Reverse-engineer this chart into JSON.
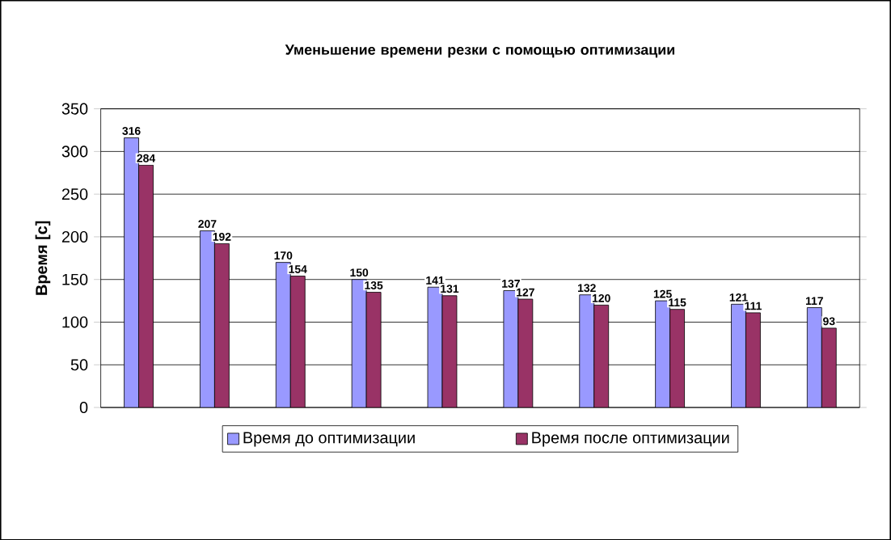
{
  "chart_data": {
    "type": "bar",
    "title": "Уменьшение  времени резки с помощью оптимизации",
    "ylabel": "Время [с]",
    "categories": [
      null,
      null,
      null,
      null,
      null,
      null,
      null,
      null,
      null,
      null
    ],
    "series": [
      {
        "name": "Время до оптимизации",
        "color": "#9999ff",
        "values": [
          316,
          207,
          170,
          150,
          141,
          137,
          132,
          125,
          121,
          117
        ]
      },
      {
        "name": "Время после оптимизации",
        "color": "#993366",
        "values": [
          284,
          192,
          154,
          135,
          131,
          127,
          120,
          115,
          111,
          93
        ]
      }
    ],
    "ylim": [
      0,
      350
    ],
    "yticks": [
      0,
      50,
      100,
      150,
      200,
      250,
      300,
      350
    ],
    "grid": "y",
    "legend": "bottom",
    "tick_labels": "y",
    "data_labels": true
  }
}
